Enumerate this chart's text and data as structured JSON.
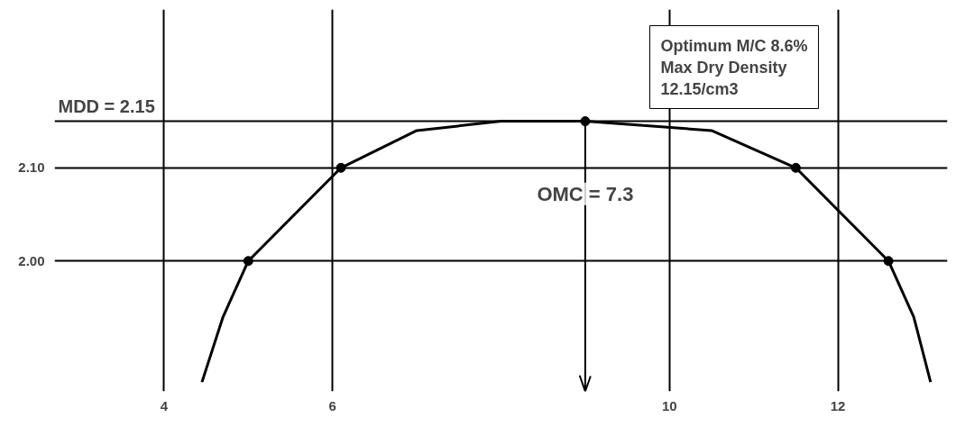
{
  "chart_data": {
    "type": "scatter",
    "x": [
      5.0,
      6.1,
      9.0,
      11.5,
      12.6
    ],
    "values": [
      2.0,
      2.1,
      2.15,
      2.1,
      2.0
    ],
    "color": "#000000",
    "marker": "circle",
    "series": [
      {
        "type": "line",
        "color": "#000000",
        "marker": "none",
        "x": [
          4.45,
          4.7,
          5.0,
          6.1,
          7.0,
          8.0,
          9.0,
          10.5,
          11.5,
          12.6,
          12.9,
          13.1
        ],
        "values": [
          1.87,
          1.94,
          2.0,
          2.1,
          2.14,
          2.15,
          2.15,
          2.14,
          2.1,
          2.0,
          1.94,
          1.87
        ]
      }
    ],
    "xlim": [
      2.7,
      13.3
    ],
    "ylim": [
      1.86,
      2.27
    ],
    "xticks": [
      4,
      6,
      10,
      12
    ],
    "yticks": [
      {
        "value": 2.0,
        "label": "2.00"
      },
      {
        "value": 2.1,
        "label": "2.10"
      }
    ],
    "grid": true,
    "ref_lines": [
      {
        "axis": "y",
        "value": 2.15,
        "label": "MDD = 2.15",
        "color": "#000000"
      },
      {
        "axis": "x",
        "value": 9.0,
        "label": null,
        "color": "#000000"
      }
    ],
    "annotations": [
      "Optimum M/C 8.6%\nMax Dry Density\n12.15/cm3",
      {
        "text": "OMC = 7.3",
        "x": 9.0,
        "y": 2.06
      }
    ]
  }
}
